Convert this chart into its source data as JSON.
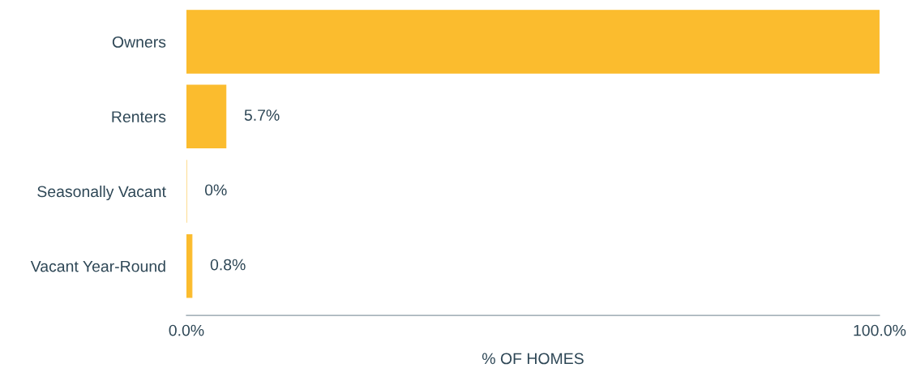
{
  "chart_data": {
    "type": "bar",
    "orientation": "horizontal",
    "xlabel": "% OF HOMES",
    "categories": [
      "Owners",
      "Renters",
      "Seasonally Vacant",
      "Vacant Year-Round"
    ],
    "values": [
      100,
      5.7,
      0,
      0.8
    ],
    "value_labels": [
      null,
      "5.7%",
      "0%",
      "0.8%"
    ],
    "color": "#fbbc2e",
    "xlim": [
      0,
      100
    ],
    "xticks": [
      {
        "value": 0,
        "label": "0.0%"
      },
      {
        "value": 100,
        "label": "100.0%"
      }
    ],
    "grid": false,
    "legend": false
  }
}
